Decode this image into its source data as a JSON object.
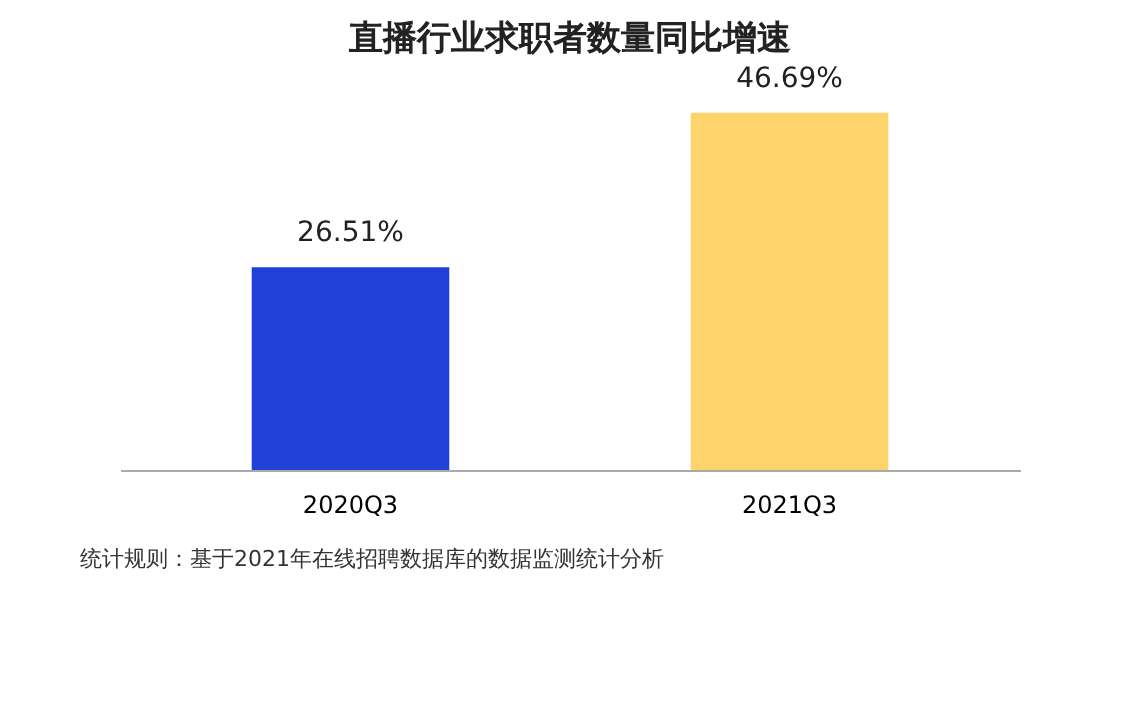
{
  "chart_data": {
    "type": "bar",
    "title": "直播行业求职者数量同比增速",
    "categories": [
      "2020Q3",
      "2021Q3"
    ],
    "values": [
      26.51,
      46.69
    ],
    "colors": [
      "#2140d8",
      "#fdd36b"
    ],
    "value_labels": [
      "26.51%",
      "46.69%"
    ],
    "annotations": [
      "统计规则：基于2021年在线招聘数据库的数据监测统计分析"
    ]
  }
}
